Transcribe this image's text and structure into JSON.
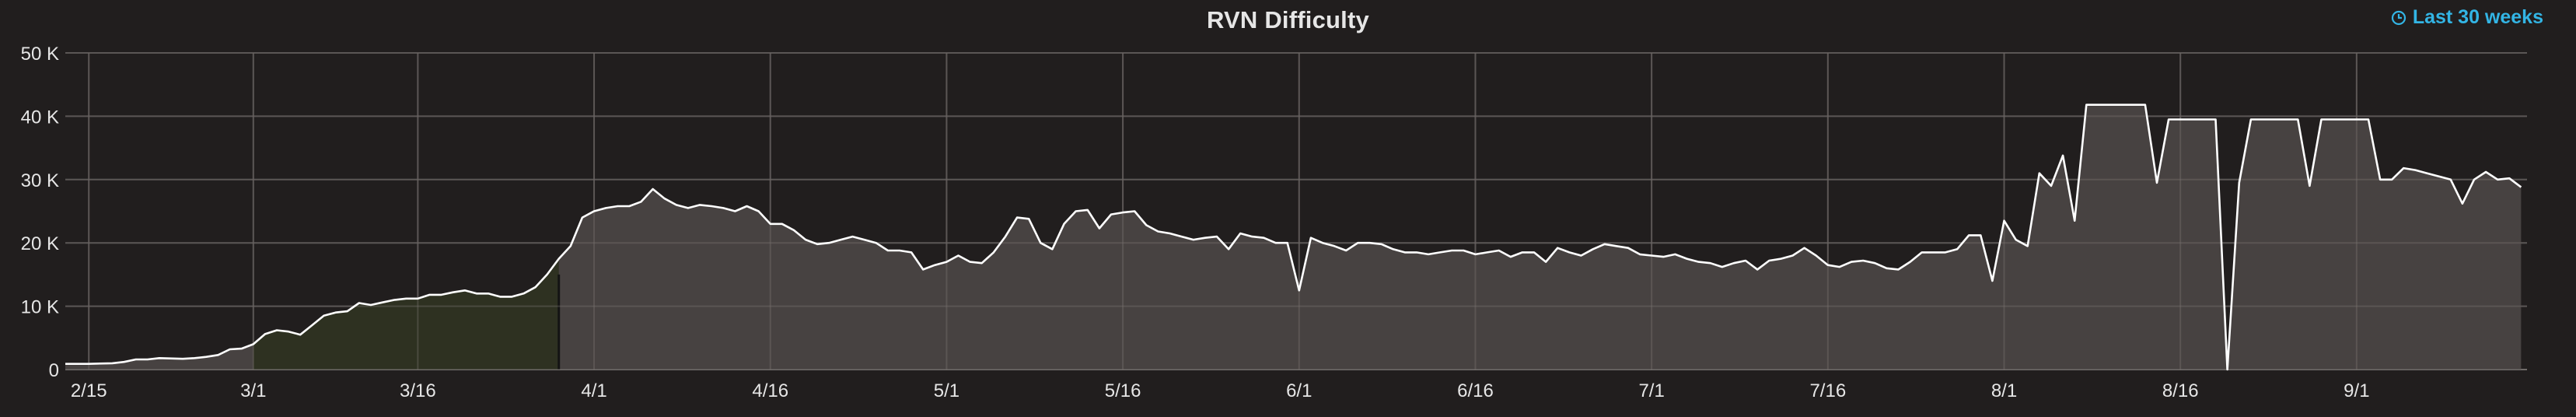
{
  "panel": {
    "title": "RVN Difficulty",
    "time_range": "Last 30 weeks",
    "icons": {
      "time_range": "clock-icon"
    },
    "colors": {
      "background": "#211e1e",
      "line": "#ffffff",
      "fill_main": "#4a4543",
      "fill_highlight": "#2f3322",
      "accent": "#33b5e5"
    }
  },
  "chart_data": {
    "type": "area",
    "title": "RVN Difficulty",
    "xlabel": "",
    "ylabel": "",
    "ylim": [
      0,
      50000
    ],
    "grid": true,
    "y_ticks": [
      0,
      10000,
      20000,
      30000,
      40000,
      50000
    ],
    "y_tick_labels": [
      "0",
      "10 K",
      "20 K",
      "30 K",
      "40 K",
      "50 K"
    ],
    "x_ticks": [
      2,
      16,
      30,
      45,
      60,
      75,
      90,
      105,
      120,
      135,
      150,
      165,
      180,
      195
    ],
    "x_tick_labels": [
      "2/15",
      "3/1",
      "3/16",
      "4/1",
      "4/16",
      "5/1",
      "5/16",
      "6/1",
      "6/16",
      "7/1",
      "7/16",
      "8/1",
      "8/16",
      "9/1"
    ],
    "x_domain": [
      0,
      209.5
    ],
    "highlight_x_range": [
      16,
      42
    ],
    "series": [
      {
        "x": [
          0,
          2,
          4,
          5,
          6,
          7,
          8,
          10,
          11,
          12,
          13,
          14,
          15,
          16,
          17,
          18,
          19,
          20,
          21,
          22,
          23,
          24,
          25,
          26,
          27,
          28,
          29,
          30,
          31,
          32,
          33,
          34,
          35,
          36,
          37,
          38,
          39,
          40,
          41,
          42,
          43,
          44,
          45,
          46,
          47,
          48,
          49,
          50,
          51,
          52,
          53,
          54,
          55,
          56,
          57,
          58,
          59,
          60,
          61,
          62,
          63,
          64,
          65,
          66,
          67,
          68,
          69,
          70,
          71,
          72,
          73,
          74,
          75,
          76,
          77,
          78,
          79,
          80,
          81,
          82,
          83,
          84,
          85,
          86,
          87,
          88,
          89,
          90,
          91,
          92,
          93,
          94,
          95,
          96,
          97,
          98,
          99,
          100,
          101,
          102,
          103,
          104,
          105,
          106,
          107,
          108,
          109,
          110,
          111,
          112,
          113,
          114,
          115,
          116,
          117,
          118,
          119,
          120,
          121,
          122,
          123,
          124,
          125,
          126,
          127,
          128,
          129,
          130,
          131,
          132,
          133,
          134,
          135,
          136,
          137,
          138,
          139,
          140,
          141,
          142,
          143,
          144,
          145,
          146,
          147,
          148,
          149,
          150,
          151,
          152,
          153,
          154,
          155,
          156,
          157,
          158,
          159,
          160,
          161,
          162,
          163,
          164,
          165,
          166,
          167,
          168,
          169,
          170,
          171,
          172,
          173,
          174,
          175,
          176,
          177,
          178,
          179,
          180,
          181,
          182,
          183,
          184,
          185,
          186,
          187,
          188,
          189,
          190,
          191,
          192,
          193,
          194,
          195,
          196,
          197,
          198,
          199,
          200,
          201,
          202,
          203,
          204,
          205,
          206,
          207,
          208,
          209
        ],
        "values": [
          900,
          900,
          1000,
          1200,
          1600,
          1600,
          1800,
          1700,
          1800,
          2000,
          2300,
          3200,
          3300,
          4000,
          5600,
          6200,
          6000,
          5500,
          7000,
          8500,
          9000,
          9200,
          10500,
          10200,
          10600,
          11000,
          11200,
          11200,
          11800,
          11800,
          12200,
          12500,
          12000,
          12000,
          11500,
          11500,
          12000,
          13000,
          15000,
          17500,
          19500,
          24000,
          25000,
          25500,
          25800,
          25800,
          26500,
          28500,
          27000,
          26000,
          25500,
          26000,
          25800,
          25500,
          25000,
          25800,
          25000,
          23000,
          23000,
          22000,
          20500,
          19800,
          20000,
          20500,
          21000,
          20500,
          20000,
          18800,
          18800,
          18500,
          15800,
          16500,
          17000,
          18000,
          17000,
          16800,
          18500,
          21000,
          24000,
          23800,
          20000,
          19000,
          23000,
          25000,
          25200,
          22300,
          24500,
          24800,
          25000,
          22800,
          21800,
          21500,
          21000,
          20500,
          20800,
          21000,
          19000,
          21500,
          21000,
          20800,
          20000,
          20000,
          12500,
          20800,
          20000,
          19500,
          18800,
          20000,
          20000,
          19800,
          19000,
          18500,
          18500,
          18200,
          18500,
          18800,
          18800,
          18200,
          18500,
          18800,
          17800,
          18500,
          18500,
          17000,
          19200,
          18500,
          18000,
          19000,
          19800,
          19500,
          19200,
          18200,
          18000,
          17800,
          18200,
          17500,
          17000,
          16800,
          16200,
          16800,
          17200,
          15800,
          17200,
          17500,
          18000,
          19200,
          18000,
          16500,
          16200,
          17000,
          17200,
          16800,
          16000,
          15800,
          17000,
          18500,
          18500,
          18500,
          19000,
          21200,
          21200,
          14000,
          23500,
          20500,
          19500,
          31000,
          29000,
          33800,
          23500,
          41800,
          41800,
          41800,
          41800,
          41800,
          41800,
          29500,
          39500,
          39500,
          39500,
          39500,
          39500,
          0,
          29500,
          39500,
          39500,
          39500,
          39500,
          39500,
          29000,
          39500,
          39500,
          39500,
          39500,
          39500,
          30000,
          30000,
          31800,
          31500,
          31000,
          30500,
          30000,
          26200,
          30000,
          31200,
          30000,
          30200,
          28800
        ]
      }
    ]
  }
}
